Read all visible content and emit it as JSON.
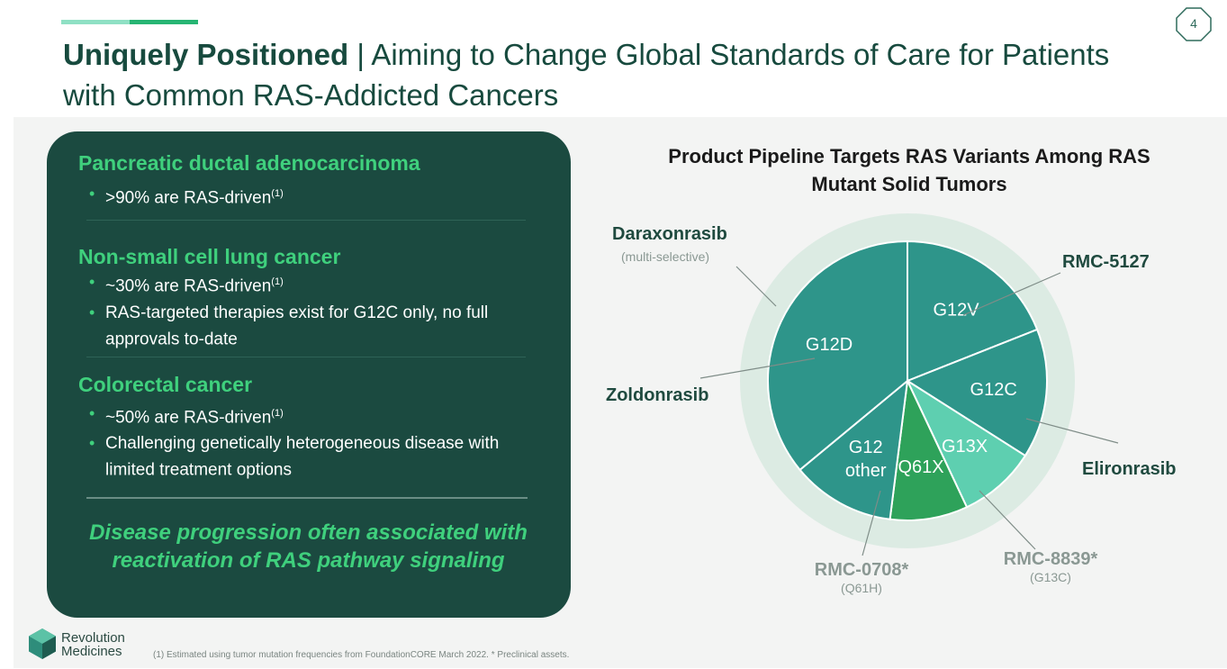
{
  "page": {
    "number": "4",
    "title_bold": "Uniquely Positioned",
    "title_separator": "|",
    "title_rest": "Aiming to Change Global Standards of Care for Patients with Common RAS-Addicted Cancers"
  },
  "card": {
    "sections": [
      {
        "title": "Pancreatic ductal adenocarcinoma",
        "bullets": [
          {
            "text": ">90% are RAS-driven",
            "sup": "(1)"
          }
        ]
      },
      {
        "title": "Non-small cell lung cancer",
        "bullets": [
          {
            "text": "~30% are RAS-driven",
            "sup": "(1)"
          },
          {
            "text": "RAS-targeted therapies exist for G12C only, no full approvals to-date",
            "sup": ""
          }
        ]
      },
      {
        "title": "Colorectal cancer",
        "bullets": [
          {
            "text": "~50% are RAS-driven",
            "sup": "(1)"
          },
          {
            "text": "Challenging genetically heterogeneous disease with limited treatment options",
            "sup": ""
          }
        ]
      }
    ],
    "tagline": "Disease progression often associated with reactivation of RAS pathway signaling"
  },
  "chart_data": {
    "type": "pie",
    "title": "Product Pipeline Targets RAS Variants Among RAS Mutant Solid Tumors",
    "categories": [
      "G12V",
      "G12C",
      "G13X",
      "Q61X",
      "G12 other",
      "G12D"
    ],
    "values": [
      19,
      15,
      9,
      9,
      12,
      36
    ],
    "colors": [
      "#2e958a",
      "#2e958a",
      "#5ecfb0",
      "#2ea25a",
      "#2e958a",
      "#2e958a"
    ],
    "ring_color": "#dcebe3",
    "annotations": [
      {
        "name": "Daraxonrasib",
        "sub": "(multi-selective)",
        "target": "outer ring"
      },
      {
        "name": "RMC-5127",
        "sub": "",
        "target": "G12V"
      },
      {
        "name": "Zoldonrasib",
        "sub": "",
        "target": "G12D"
      },
      {
        "name": "Elironrasib",
        "sub": "",
        "target": "G12C"
      },
      {
        "name": "RMC-0708*",
        "sub": "(Q61H)",
        "target": "Q61X"
      },
      {
        "name": "RMC-8839*",
        "sub": "(G13C)",
        "target": "G13X"
      }
    ]
  },
  "footer": {
    "logo_line1": "Revolution",
    "logo_line2": "Medicines",
    "footnote": "(1) Estimated using tumor mutation frequencies from FoundationCORE March 2022. * Preclinical assets."
  }
}
